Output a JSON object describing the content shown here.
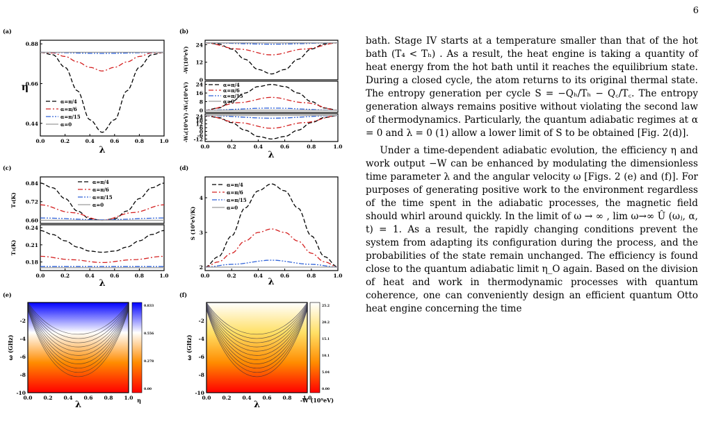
{
  "page_number": "6",
  "figure": {
    "panel_labels": [
      "(a)",
      "(b)",
      "(c)",
      "(d)",
      "(e)",
      "(f)"
    ],
    "legend": [
      "α=π/4",
      "α=π/6",
      "α=π/15",
      "α=0"
    ],
    "series_colors": [
      "#000000",
      "#d42020",
      "#2f62d8",
      "#9a9a9a"
    ],
    "colormap_e": [
      "#0000ff",
      "#ffffff",
      "#ff8c00",
      "#ff0000"
    ]
  },
  "chart_data": [
    {
      "panel": "(a)",
      "type": "line",
      "xlabel": "λ",
      "ylabel": "η",
      "xlim": [
        0.0,
        1.0
      ],
      "ylim": [
        0.37,
        0.9
      ],
      "xticks": [
        "0.0",
        "0.2",
        "0.4",
        "0.6",
        "0.8",
        "1.0"
      ],
      "yticks": [
        "0.44",
        "0.66",
        "0.88"
      ],
      "legend_position": "left",
      "series": [
        {
          "name": "α=π/4",
          "style": "dash",
          "x": [
            0,
            0.1,
            0.2,
            0.3,
            0.4,
            0.5,
            0.6,
            0.7,
            0.8,
            0.9,
            1.0
          ],
          "y": [
            0.833,
            0.82,
            0.75,
            0.62,
            0.46,
            0.39,
            0.46,
            0.62,
            0.75,
            0.82,
            0.833
          ]
        },
        {
          "name": "α=π/6",
          "style": "dashdot",
          "x": [
            0,
            0.1,
            0.2,
            0.3,
            0.4,
            0.5,
            0.6,
            0.7,
            0.8,
            0.9,
            1.0
          ],
          "y": [
            0.833,
            0.83,
            0.81,
            0.78,
            0.75,
            0.73,
            0.75,
            0.78,
            0.81,
            0.83,
            0.833
          ]
        },
        {
          "name": "α=π/15",
          "style": "dashdotdot",
          "x": [
            0,
            0.5,
            1.0
          ],
          "y": [
            0.833,
            0.827,
            0.833
          ]
        },
        {
          "name": "α=0",
          "style": "solid",
          "x": [
            0,
            0.5,
            1.0
          ],
          "y": [
            0.833,
            0.833,
            0.833
          ]
        }
      ]
    },
    {
      "panel": "(b)",
      "type": "line",
      "xlabel": "λ",
      "xlim": [
        0.0,
        1.0
      ],
      "xticks": [
        "0.0",
        "0.2",
        "0.4",
        "0.6",
        "0.8",
        "1.0"
      ],
      "subplots": [
        {
          "ylabel": "-W(10⁹eV)",
          "ylim": [
            0,
            27
          ],
          "yticks": [
            "0",
            "12",
            "24"
          ],
          "series": [
            {
              "name": "α=π/4",
              "style": "dash",
              "x": [
                0,
                0.1,
                0.2,
                0.3,
                0.4,
                0.5,
                0.6,
                0.7,
                0.8,
                0.9,
                1.0
              ],
              "y": [
                25.2,
                24.5,
                21,
                14,
                7,
                4,
                7,
                14,
                21,
                24.5,
                25.2
              ]
            },
            {
              "name": "α=π/6",
              "style": "dashdot",
              "x": [
                0,
                0.25,
                0.5,
                0.75,
                1.0
              ],
              "y": [
                25.2,
                21,
                17,
                21,
                25.2
              ]
            },
            {
              "name": "α=π/15",
              "style": "dashdotdot",
              "x": [
                0,
                0.5,
                1.0
              ],
              "y": [
                25.2,
                24.3,
                25.2
              ]
            },
            {
              "name": "α=0",
              "style": "solid",
              "x": [
                0,
                1.0
              ],
              "y": [
                25.2,
                25.2
              ]
            }
          ]
        },
        {
          "ylabel": "-W₂(10⁹eV)",
          "ylim": [
            -2,
            27
          ],
          "yticks": [
            "0",
            "8",
            "16",
            "24"
          ],
          "series": [
            {
              "name": "α=π/4",
              "style": "dash",
              "x": [
                0,
                0.1,
                0.2,
                0.3,
                0.4,
                0.5,
                0.6,
                0.7,
                0.8,
                0.9,
                1.0
              ],
              "y": [
                0,
                2,
                8,
                16,
                22,
                24,
                22,
                16,
                8,
                2,
                0
              ]
            },
            {
              "name": "α=π/6",
              "style": "dashdot",
              "x": [
                0,
                0.25,
                0.5,
                0.75,
                1.0
              ],
              "y": [
                0,
                7,
                12,
                7,
                0
              ]
            },
            {
              "name": "α=π/15",
              "style": "dashdotdot",
              "x": [
                0,
                0.5,
                1.0
              ],
              "y": [
                0,
                2,
                0
              ]
            },
            {
              "name": "α=0",
              "style": "solid",
              "x": [
                0,
                1.0
              ],
              "y": [
                0,
                0
              ]
            }
          ]
        },
        {
          "ylabel": "-W₄(10⁹eV)",
          "ylim": [
            -16,
            28
          ],
          "yticks": [
            "-12",
            "-6",
            "0",
            "6",
            "12",
            "18",
            "24"
          ],
          "series": [
            {
              "name": "α=π/4",
              "style": "dash",
              "x": [
                0,
                0.1,
                0.2,
                0.3,
                0.4,
                0.5,
                0.6,
                0.7,
                0.8,
                0.9,
                1.0
              ],
              "y": [
                25.2,
                22,
                14,
                2,
                -8,
                -12,
                -8,
                2,
                14,
                22,
                25.2
              ]
            },
            {
              "name": "α=π/6",
              "style": "dashdot",
              "x": [
                0,
                0.25,
                0.5,
                0.75,
                1.0
              ],
              "y": [
                25.2,
                14,
                5,
                14,
                25.2
              ]
            },
            {
              "name": "α=π/15",
              "style": "dashdotdot",
              "x": [
                0,
                0.5,
                1.0
              ],
              "y": [
                25.2,
                21,
                25.2
              ]
            },
            {
              "name": "α=0",
              "style": "solid",
              "x": [
                0,
                1.0
              ],
              "y": [
                25.2,
                25.2
              ]
            }
          ]
        }
      ]
    },
    {
      "panel": "(c)",
      "type": "line",
      "xlabel": "λ",
      "xlim": [
        0.0,
        1.0
      ],
      "xticks": [
        "0.0",
        "0.2",
        "0.4",
        "0.6",
        "0.8",
        "1.0"
      ],
      "legend_position": "top",
      "subplots": [
        {
          "ylabel": "T₄(K)",
          "ylim": [
            0.58,
            0.88
          ],
          "yticks": [
            "0.60",
            "0.72",
            "0.84"
          ],
          "series": [
            {
              "name": "α=π/4",
              "style": "dash",
              "x": [
                0,
                0.1,
                0.2,
                0.3,
                0.4,
                0.5,
                0.6,
                0.7,
                0.8,
                0.9,
                1.0
              ],
              "y": [
                0.84,
                0.81,
                0.74,
                0.66,
                0.61,
                0.6,
                0.61,
                0.66,
                0.74,
                0.81,
                0.84
              ]
            },
            {
              "name": "α=π/6",
              "style": "dashdot",
              "x": [
                0,
                0.25,
                0.5,
                0.75,
                1.0
              ],
              "y": [
                0.7,
                0.65,
                0.6,
                0.65,
                0.7
              ]
            },
            {
              "name": "α=π/15",
              "style": "dashdotdot",
              "x": [
                0,
                0.5,
                1.0
              ],
              "y": [
                0.615,
                0.603,
                0.615
              ]
            },
            {
              "name": "α=0",
              "style": "solid",
              "x": [
                0,
                1.0
              ],
              "y": [
                0.6,
                0.6
              ]
            }
          ]
        },
        {
          "ylabel": "T₃(K)",
          "ylim": [
            0.165,
            0.245
          ],
          "yticks": [
            "0.18",
            "0.21",
            "0.24"
          ],
          "series": [
            {
              "name": "α=π/4",
              "style": "dash",
              "x": [
                0,
                0.1,
                0.2,
                0.3,
                0.4,
                0.5,
                0.6,
                0.7,
                0.8,
                0.9,
                1.0
              ],
              "y": [
                0.235,
                0.228,
                0.217,
                0.206,
                0.199,
                0.197,
                0.199,
                0.206,
                0.217,
                0.228,
                0.235
              ]
            },
            {
              "name": "α=π/6",
              "style": "dashdot",
              "x": [
                0,
                0.25,
                0.5,
                0.75,
                1.0
              ],
              "y": [
                0.19,
                0.184,
                0.179,
                0.184,
                0.19
              ]
            },
            {
              "name": "α=π/15",
              "style": "dashdotdot",
              "x": [
                0,
                0.5,
                1.0
              ],
              "y": [
                0.172,
                0.172,
                0.172
              ]
            },
            {
              "name": "α=0",
              "style": "solid",
              "x": [
                0,
                1.0
              ],
              "y": [
                0.17,
                0.17
              ]
            }
          ]
        }
      ]
    },
    {
      "panel": "(d)",
      "type": "line",
      "xlabel": "λ",
      "ylabel": "S (10⁹eV/K)",
      "xlim": [
        0.0,
        1.0
      ],
      "ylim": [
        1.9,
        4.6
      ],
      "xticks": [
        "0.0",
        "0.2",
        "0.4",
        "0.6",
        "0.8",
        "1.0"
      ],
      "yticks": [
        "2",
        "3",
        "4"
      ],
      "legend_position": "top-left",
      "series": [
        {
          "name": "α=π/4",
          "style": "dash",
          "x": [
            0,
            0.1,
            0.2,
            0.3,
            0.4,
            0.5,
            0.6,
            0.7,
            0.8,
            0.9,
            1.0
          ],
          "y": [
            2.0,
            2.3,
            2.9,
            3.7,
            4.2,
            4.4,
            4.2,
            3.7,
            2.9,
            2.3,
            2.0
          ]
        },
        {
          "name": "α=π/6",
          "style": "dashdot",
          "x": [
            0,
            0.1,
            0.2,
            0.3,
            0.4,
            0.5,
            0.6,
            0.7,
            0.8,
            0.9,
            1.0
          ],
          "y": [
            2.0,
            2.15,
            2.4,
            2.75,
            3.0,
            3.1,
            3.0,
            2.75,
            2.4,
            2.15,
            2.0
          ]
        },
        {
          "name": "α=π/15",
          "style": "dashdotdot",
          "x": [
            0,
            0.2,
            0.5,
            0.8,
            1.0
          ],
          "y": [
            2.0,
            2.08,
            2.2,
            2.08,
            2.0
          ]
        },
        {
          "name": "α=0",
          "style": "solid",
          "x": [
            0,
            1.0
          ],
          "y": [
            2.0,
            2.0
          ]
        }
      ]
    },
    {
      "panel": "(e)",
      "type": "heatmap",
      "xlabel": "λ",
      "ylabel": "ω (GHz)",
      "xlim": [
        0.0,
        1.0
      ],
      "ylim": [
        -10,
        0
      ],
      "xticks": [
        "0.0",
        "0.2",
        "0.4",
        "0.6",
        "0.8",
        "1.0"
      ],
      "yticks": [
        "-2",
        "-4",
        "-6",
        "-8",
        "-10"
      ],
      "colorbar_label": "η",
      "colorbar_ticks": [
        "0.833",
        "0.556",
        "0.278",
        "0.00"
      ]
    },
    {
      "panel": "(f)",
      "type": "heatmap",
      "xlabel": "λ",
      "ylabel": "ω (GHz)",
      "xlim": [
        0.0,
        1.0
      ],
      "ylim": [
        -10,
        0
      ],
      "xticks": [
        "0.0",
        "0.2",
        "0.4",
        "0.6",
        "0.8",
        "1.0"
      ],
      "yticks": [
        "-2",
        "-4",
        "-6",
        "-8",
        "-10"
      ],
      "colorbar_label": "-W (10⁹eV)",
      "colorbar_ticks": [
        "25.2",
        "20.2",
        "15.1",
        "10.1",
        "5.04",
        "0.00"
      ]
    }
  ],
  "text": {
    "p1": "bath. Stage IV starts at a temperature smaller than that of the hot bath (T₄ < Tₕ) . As a result, the heat engine is taking a quantity of heat energy from the hot bath until it reaches the equilibrium state. During a closed cycle, the atom returns to its original thermal state. The entropy generation per cycle S = −Qₕ/Tₕ − Q꜀/T꜀. The entropy generation always remains positive without violating the second law of thermodynamics. Particularly, the quantum adiabatic regimes at α = 0 and λ = 0 (1) allow a lower limit of S to be obtained [Fig. 2(d)].",
    "p2": "Under a time-dependent adiabatic evolution, the efficiency η and work output −W can be enhanced by modulating the dimensionless time parameter λ and the angular velocity ω [Figs. 2 (e) and (f)]. For purposes of generating positive work to the environment regardless of the time spent in the adiabatic processes, the magnetic field should whirl around quickly. In the limit of ω → ∞ , lim ω→∞ Û (ωⱼ, α, t) = 1. As a result, the rapidly changing conditions prevent the system from adapting its configuration during the process, and the probabilities of the state remain unchanged. The efficiency is found close to the quantum adiabatic limit η_O again. Based on the division of heat and work in thermodynamic processes with quantum coherence, one can conveniently design an efficient quantum Otto heat engine concerning the time"
  }
}
